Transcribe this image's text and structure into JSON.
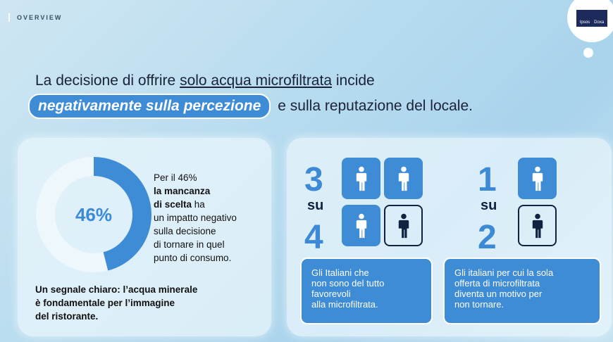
{
  "header": {
    "section": "OVERVIEW",
    "logo": [
      "Ipsos",
      "Doxa"
    ]
  },
  "title": {
    "line1": [
      "La decisione di offrire",
      "solo acqua microfiltrata",
      "incide"
    ],
    "line2": [
      "negativamente sulla percezione",
      "e sulla reputazione del locale."
    ]
  },
  "donut": {
    "value": 46,
    "label": "46%",
    "text": [
      "Per il 46%",
      "la mancanza",
      "di scelta",
      "ha",
      "un impatto negativo",
      "sulla decisione",
      "di tornare in quel",
      "punto di consumo."
    ],
    "note": [
      "Un segnale chiaro: l’acqua minerale",
      "è fondamentale per l’immagine",
      "del ristorante."
    ]
  },
  "stats": [
    {
      "numerator": "3",
      "connector": "su",
      "denominator": "4",
      "text": [
        "Gli Italiani che",
        "non sono del tutto",
        "favorevoli",
        "alla microfiltrata."
      ]
    },
    {
      "numerator": "1",
      "connector": "su",
      "denominator": "2",
      "text": [
        "Gli italiani per cui la sola",
        "offerta di microfiltrata",
        "diventa un motivo per",
        "non tornare."
      ]
    }
  ]
}
